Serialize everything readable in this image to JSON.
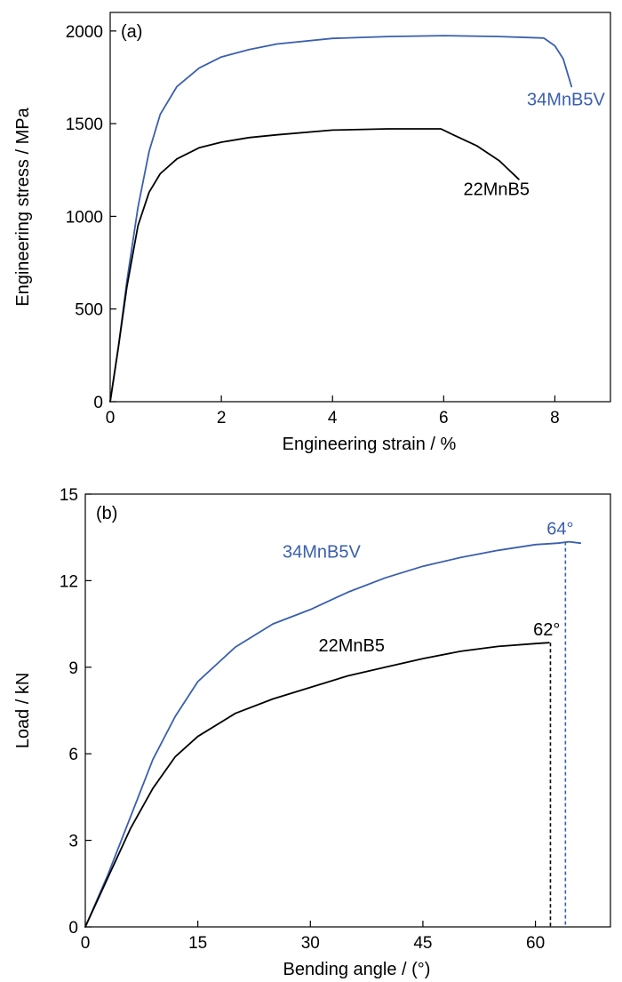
{
  "colors": {
    "blue": "#3a5fae",
    "black": "#000000"
  },
  "chart_data": [
    {
      "type": "line",
      "panel_label": "(a)",
      "xlabel": "Engineering strain / %",
      "ylabel": "Engineering stress / MPa",
      "xlim": [
        0,
        9
      ],
      "ylim": [
        0,
        2100
      ],
      "xticks": [
        0,
        2,
        4,
        6,
        8
      ],
      "yticks": [
        0,
        500,
        1000,
        1500,
        2000
      ],
      "grid": false,
      "series": [
        {
          "name": "34MnB5V",
          "color": "#3a5fae",
          "points": [
            [
              0,
              0
            ],
            [
              0.15,
              300
            ],
            [
              0.3,
              650
            ],
            [
              0.5,
              1050
            ],
            [
              0.7,
              1350
            ],
            [
              0.9,
              1550
            ],
            [
              1.2,
              1700
            ],
            [
              1.6,
              1800
            ],
            [
              2.0,
              1860
            ],
            [
              2.5,
              1900
            ],
            [
              3.0,
              1930
            ],
            [
              4.0,
              1960
            ],
            [
              5.0,
              1970
            ],
            [
              6.0,
              1975
            ],
            [
              7.0,
              1970
            ],
            [
              7.8,
              1962
            ],
            [
              8.0,
              1920
            ],
            [
              8.15,
              1850
            ],
            [
              8.3,
              1700
            ]
          ]
        },
        {
          "name": "22MnB5",
          "color": "#000000",
          "points": [
            [
              0,
              0
            ],
            [
              0.15,
              300
            ],
            [
              0.3,
              620
            ],
            [
              0.5,
              950
            ],
            [
              0.7,
              1130
            ],
            [
              0.9,
              1230
            ],
            [
              1.2,
              1310
            ],
            [
              1.6,
              1370
            ],
            [
              2.0,
              1400
            ],
            [
              2.5,
              1425
            ],
            [
              3.0,
              1440
            ],
            [
              4.0,
              1465
            ],
            [
              5.0,
              1472
            ],
            [
              5.95,
              1472
            ],
            [
              6.1,
              1450
            ],
            [
              6.6,
              1380
            ],
            [
              7.0,
              1300
            ],
            [
              7.35,
              1200
            ]
          ]
        }
      ],
      "annotations": [
        {
          "text": "34MnB5V",
          "x": 8.2,
          "y": 1600,
          "color": "#3a5fae"
        },
        {
          "text": "22MnB5",
          "x": 6.95,
          "y": 1115,
          "color": "#000000"
        }
      ]
    },
    {
      "type": "line",
      "panel_label": "(b)",
      "xlabel": "Bending angle / (°)",
      "ylabel": "Load / kN",
      "xlim": [
        0,
        70
      ],
      "ylim": [
        0,
        15
      ],
      "xticks": [
        0,
        15,
        30,
        45,
        60
      ],
      "yticks": [
        0,
        3,
        6,
        9,
        12,
        15
      ],
      "grid": false,
      "series": [
        {
          "name": "34MnB5V",
          "color": "#3a5fae",
          "points": [
            [
              0,
              0
            ],
            [
              3,
              1.8
            ],
            [
              6,
              3.8
            ],
            [
              9,
              5.8
            ],
            [
              12,
              7.3
            ],
            [
              15,
              8.5
            ],
            [
              20,
              9.7
            ],
            [
              25,
              10.5
            ],
            [
              30,
              11.0
            ],
            [
              35,
              11.6
            ],
            [
              40,
              12.1
            ],
            [
              45,
              12.5
            ],
            [
              50,
              12.8
            ],
            [
              55,
              13.05
            ],
            [
              60,
              13.25
            ],
            [
              63,
              13.3
            ],
            [
              64.5,
              13.35
            ],
            [
              66,
              13.3
            ]
          ]
        },
        {
          "name": "22MnB5",
          "color": "#000000",
          "points": [
            [
              0,
              0
            ],
            [
              3,
              1.7
            ],
            [
              6,
              3.4
            ],
            [
              9,
              4.8
            ],
            [
              12,
              5.9
            ],
            [
              15,
              6.6
            ],
            [
              20,
              7.4
            ],
            [
              25,
              7.9
            ],
            [
              30,
              8.3
            ],
            [
              35,
              8.7
            ],
            [
              40,
              9.0
            ],
            [
              45,
              9.3
            ],
            [
              50,
              9.55
            ],
            [
              55,
              9.72
            ],
            [
              60,
              9.82
            ],
            [
              61.8,
              9.85
            ]
          ]
        }
      ],
      "markers": [
        {
          "x": 62,
          "y_top": 9.85,
          "color": "#000000"
        },
        {
          "x": 64,
          "y_top": 13.35,
          "color": "#3a5fae"
        }
      ],
      "annotations": [
        {
          "text": "34MnB5V",
          "x": 31.5,
          "y": 12.8,
          "color": "#3a5fae"
        },
        {
          "text": "22MnB5",
          "x": 35.5,
          "y": 9.55,
          "color": "#000000"
        },
        {
          "text": "62°",
          "x": 61.5,
          "y": 10.1,
          "color": "#000000"
        },
        {
          "text": "64°",
          "x": 63.3,
          "y": 13.6,
          "color": "#3a5fae"
        }
      ]
    }
  ]
}
